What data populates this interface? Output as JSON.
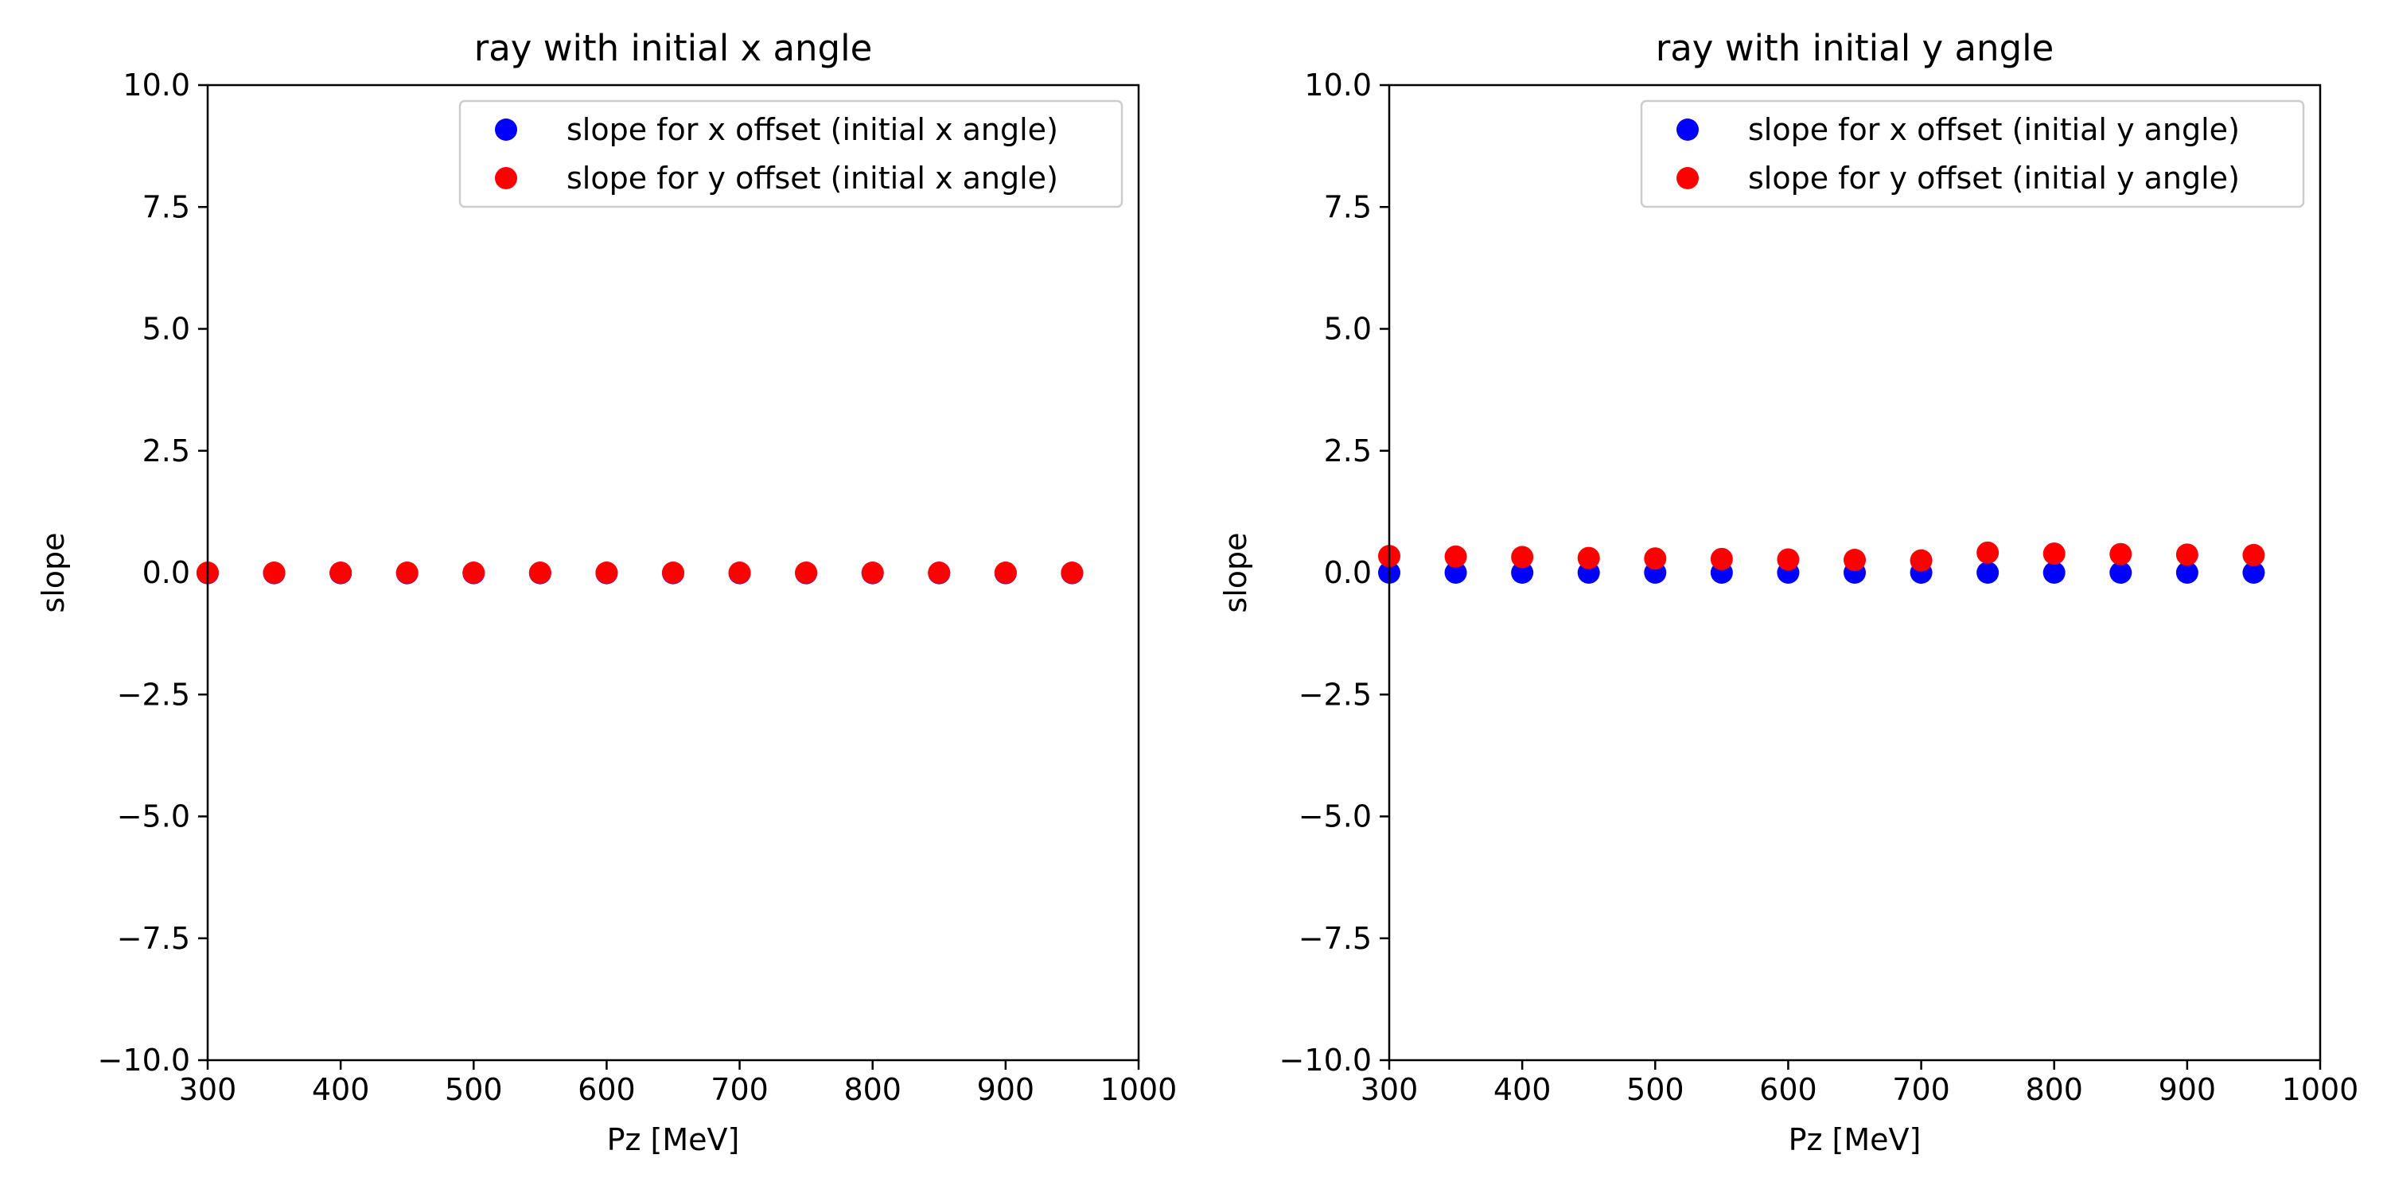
{
  "chart_data": [
    {
      "type": "scatter",
      "title": "ray with initial x angle",
      "xlabel": "Pz [MeV]",
      "ylabel": "slope",
      "xlim": [
        300,
        1000
      ],
      "ylim": [
        -10,
        10
      ],
      "x_ticks": [
        "300",
        "400",
        "500",
        "600",
        "700",
        "800",
        "900",
        "1000"
      ],
      "y_ticks": [
        "10.0",
        "7.5",
        "5.0",
        "2.5",
        "0.0",
        "−2.5",
        "−5.0",
        "−7.5",
        "−10.0"
      ],
      "grid": false,
      "legend_position": "top-right",
      "x": [
        300,
        350,
        400,
        450,
        500,
        550,
        600,
        650,
        700,
        750,
        800,
        850,
        900,
        950
      ],
      "series": [
        {
          "name": "slope for x offset (initial x angle)",
          "color": "#0000ff",
          "values": [
            -0.01,
            -0.01,
            -0.01,
            -0.01,
            -0.01,
            -0.01,
            -0.01,
            -0.01,
            -0.01,
            -0.01,
            -0.01,
            -0.01,
            -0.01,
            -0.01
          ]
        },
        {
          "name": "slope for y offset (initial x angle)",
          "color": "#ff0000",
          "values": [
            0.0,
            0.0,
            0.0,
            0.0,
            0.0,
            0.0,
            0.0,
            0.0,
            0.0,
            0.0,
            0.0,
            0.0,
            0.0,
            0.0
          ]
        }
      ]
    },
    {
      "type": "scatter",
      "title": "ray with initial y angle",
      "xlabel": "Pz [MeV]",
      "ylabel": "slope",
      "xlim": [
        300,
        1000
      ],
      "ylim": [
        -10,
        10
      ],
      "x_ticks": [
        "300",
        "400",
        "500",
        "600",
        "700",
        "800",
        "900",
        "1000"
      ],
      "y_ticks": [
        "10.0",
        "7.5",
        "5.0",
        "2.5",
        "0.0",
        "−2.5",
        "−5.0",
        "−7.5",
        "−10.0"
      ],
      "grid": false,
      "legend_position": "top-right",
      "x": [
        300,
        350,
        400,
        450,
        500,
        550,
        600,
        650,
        700,
        750,
        800,
        850,
        900,
        950
      ],
      "series": [
        {
          "name": "slope for x offset (initial y angle)",
          "color": "#0000ff",
          "values": [
            0.0,
            0.0,
            0.0,
            0.0,
            0.0,
            0.0,
            0.0,
            0.0,
            0.0,
            0.0,
            0.0,
            0.0,
            0.0,
            0.0
          ]
        },
        {
          "name": "slope for y offset (initial y angle)",
          "color": "#ff0000",
          "values": [
            0.34,
            0.33,
            0.32,
            0.3,
            0.29,
            0.28,
            0.27,
            0.26,
            0.25,
            0.41,
            0.39,
            0.38,
            0.37,
            0.36
          ]
        }
      ]
    }
  ]
}
